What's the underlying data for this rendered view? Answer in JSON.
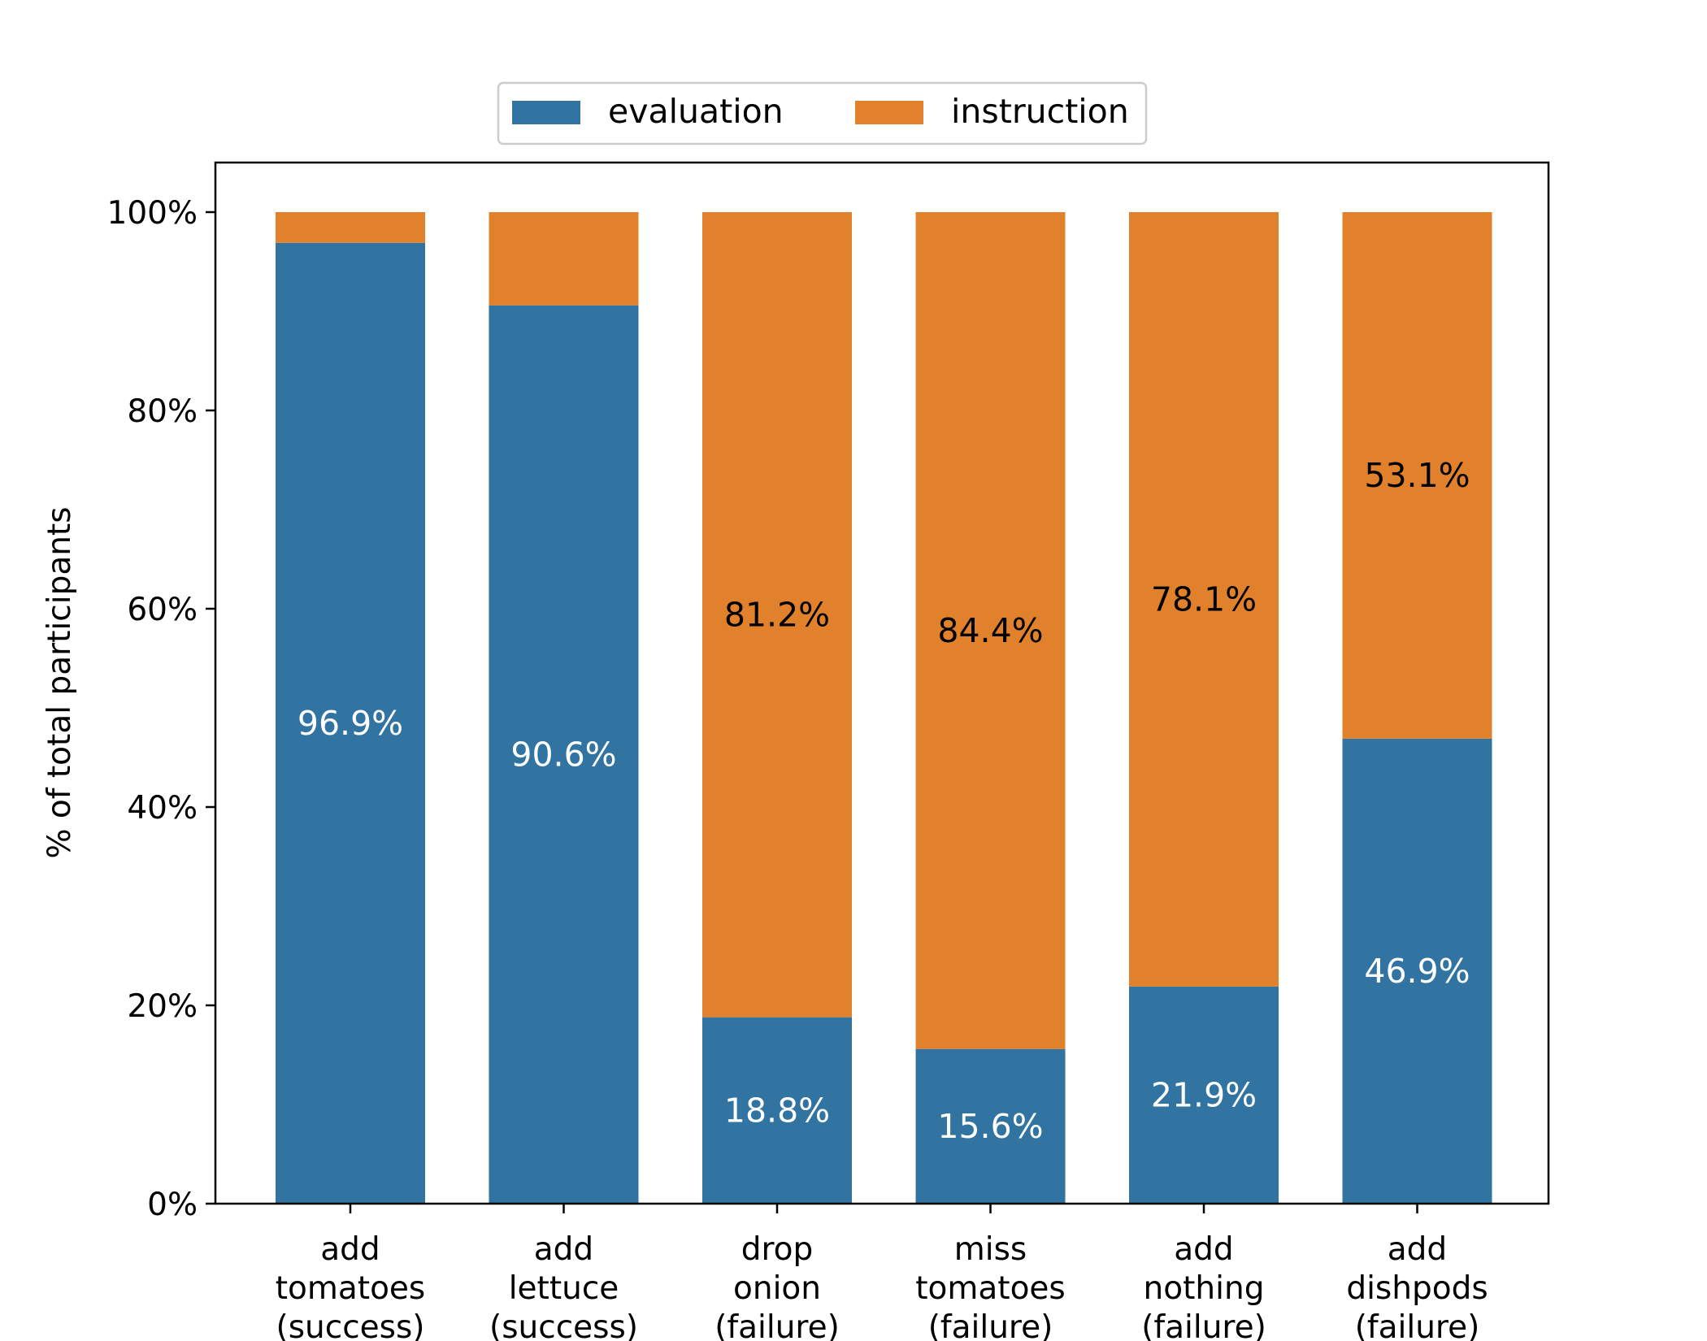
{
  "chart_data": {
    "type": "bar",
    "stacked": true,
    "title": "",
    "xlabel": "",
    "ylabel": "% of total participants",
    "ylim": [
      0,
      105
    ],
    "yticks": [
      0,
      20,
      40,
      60,
      80,
      100
    ],
    "ytick_labels": [
      "0%",
      "20%",
      "40%",
      "60%",
      "80%",
      "100%"
    ],
    "categories": [
      [
        "add",
        "tomatoes",
        "(success)"
      ],
      [
        "add",
        "lettuce",
        "(success)"
      ],
      [
        "drop",
        "onion",
        "(failure)"
      ],
      [
        "miss",
        "tomatoes",
        "(failure)"
      ],
      [
        "add",
        "nothing",
        "(failure)"
      ],
      [
        "add",
        "dishpods",
        "(failure)"
      ]
    ],
    "series": [
      {
        "name": "evaluation",
        "color": "#3274a1",
        "label_color": "#ffffff",
        "values": [
          96.9,
          90.6,
          18.8,
          15.6,
          21.9,
          46.9
        ],
        "labels": [
          "96.9%",
          "90.6%",
          "18.8%",
          "15.6%",
          "21.9%",
          "46.9%"
        ]
      },
      {
        "name": "instruction",
        "color": "#e1812c",
        "label_color": "#000000",
        "values": [
          3.1,
          9.4,
          81.2,
          84.4,
          78.1,
          53.1
        ],
        "labels": [
          "",
          "",
          "81.2%",
          "84.4%",
          "78.1%",
          "53.1%"
        ]
      }
    ],
    "legend": {
      "position": "top-center",
      "entries": [
        "evaluation",
        "instruction"
      ]
    },
    "grid": false
  }
}
